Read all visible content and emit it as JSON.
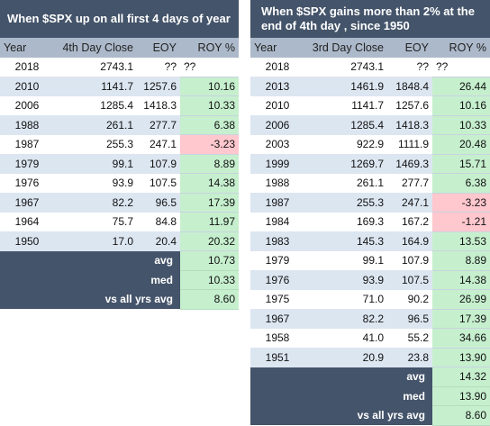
{
  "left": {
    "title": "When $SPX up on all first 4 days of year",
    "headers": [
      "Year",
      "4th Day Close",
      "EOY",
      "ROY %"
    ],
    "rows": [
      {
        "year": "2018",
        "close": "2743.1",
        "eoy": "??",
        "roy": "??",
        "sign": "none"
      },
      {
        "year": "2010",
        "close": "1141.7",
        "eoy": "1257.6",
        "roy": "10.16",
        "sign": "pos"
      },
      {
        "year": "2006",
        "close": "1285.4",
        "eoy": "1418.3",
        "roy": "10.33",
        "sign": "pos"
      },
      {
        "year": "1988",
        "close": "261.1",
        "eoy": "277.7",
        "roy": "6.38",
        "sign": "pos"
      },
      {
        "year": "1987",
        "close": "255.3",
        "eoy": "247.1",
        "roy": "-3.23",
        "sign": "neg"
      },
      {
        "year": "1979",
        "close": "99.1",
        "eoy": "107.9",
        "roy": "8.89",
        "sign": "pos"
      },
      {
        "year": "1976",
        "close": "93.9",
        "eoy": "107.5",
        "roy": "14.38",
        "sign": "pos"
      },
      {
        "year": "1967",
        "close": "82.2",
        "eoy": "96.5",
        "roy": "17.39",
        "sign": "pos"
      },
      {
        "year": "1964",
        "close": "75.7",
        "eoy": "84.8",
        "roy": "11.97",
        "sign": "pos"
      },
      {
        "year": "1950",
        "close": "17.0",
        "eoy": "20.4",
        "roy": "20.32",
        "sign": "pos"
      }
    ],
    "summary": [
      {
        "label": "avg",
        "value": "10.73"
      },
      {
        "label": "med",
        "value": "10.33"
      },
      {
        "label": "vs all yrs  avg",
        "value": "8.60"
      }
    ]
  },
  "right": {
    "title": "When $SPX gains more than 2% at the end of 4th day , since 1950",
    "headers": [
      "Year",
      "3rd Day Close",
      "EOY",
      "ROY %"
    ],
    "rows": [
      {
        "year": "2018",
        "close": "2743.1",
        "eoy": "??",
        "roy": "??",
        "sign": "none"
      },
      {
        "year": "2013",
        "close": "1461.9",
        "eoy": "1848.4",
        "roy": "26.44",
        "sign": "pos"
      },
      {
        "year": "2010",
        "close": "1141.7",
        "eoy": "1257.6",
        "roy": "10.16",
        "sign": "pos"
      },
      {
        "year": "2006",
        "close": "1285.4",
        "eoy": "1418.3",
        "roy": "10.33",
        "sign": "pos"
      },
      {
        "year": "2003",
        "close": "922.9",
        "eoy": "1111.9",
        "roy": "20.48",
        "sign": "pos"
      },
      {
        "year": "1999",
        "close": "1269.7",
        "eoy": "1469.3",
        "roy": "15.71",
        "sign": "pos"
      },
      {
        "year": "1988",
        "close": "261.1",
        "eoy": "277.7",
        "roy": "6.38",
        "sign": "pos"
      },
      {
        "year": "1987",
        "close": "255.3",
        "eoy": "247.1",
        "roy": "-3.23",
        "sign": "neg"
      },
      {
        "year": "1984",
        "close": "169.3",
        "eoy": "167.2",
        "roy": "-1.21",
        "sign": "neg"
      },
      {
        "year": "1983",
        "close": "145.3",
        "eoy": "164.9",
        "roy": "13.53",
        "sign": "pos"
      },
      {
        "year": "1979",
        "close": "99.1",
        "eoy": "107.9",
        "roy": "8.89",
        "sign": "pos"
      },
      {
        "year": "1976",
        "close": "93.9",
        "eoy": "107.5",
        "roy": "14.38",
        "sign": "pos"
      },
      {
        "year": "1975",
        "close": "71.0",
        "eoy": "90.2",
        "roy": "26.99",
        "sign": "pos"
      },
      {
        "year": "1967",
        "close": "82.2",
        "eoy": "96.5",
        "roy": "17.39",
        "sign": "pos"
      },
      {
        "year": "1958",
        "close": "41.0",
        "eoy": "55.2",
        "roy": "34.66",
        "sign": "pos"
      },
      {
        "year": "1951",
        "close": "20.9",
        "eoy": "23.8",
        "roy": "13.90",
        "sign": "pos"
      }
    ],
    "summary": [
      {
        "label": "avg",
        "value": "14.32"
      },
      {
        "label": "med",
        "value": "13.90"
      },
      {
        "label": "vs all yrs  avg",
        "value": "8.60"
      }
    ]
  },
  "colors": {
    "title_bg": "#44546a",
    "header_bg": "#acb9ca",
    "band_bg": "#dce6f1",
    "positive_bg": "#c6efce",
    "negative_bg": "#ffc7ce"
  }
}
